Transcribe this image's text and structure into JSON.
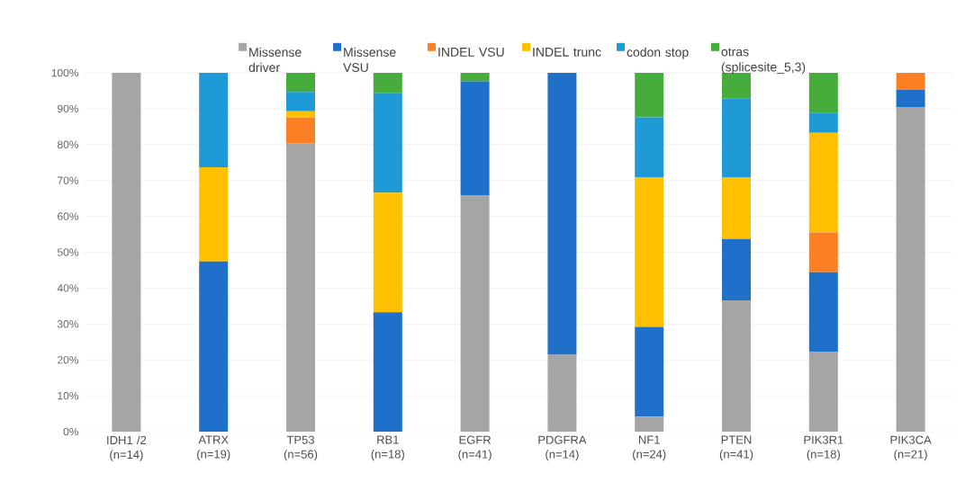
{
  "chart_data": {
    "type": "bar",
    "stacked": true,
    "legend": "top",
    "grid": "y",
    "categories": [
      "IDH1 /2 (n=14)",
      "ATRX (n=19)",
      "TP53 (n=56)",
      "RB1 (n=18)",
      "EGFR (n=41)",
      "PDGFRA (n=14)",
      "NF1 (n=24)",
      "PTEN (n=41)",
      "PIK3R1 (n=18)",
      "PIK3CA (n=21)"
    ],
    "ylim": [
      0,
      100
    ],
    "yticks": [
      {
        "value": 0,
        "label": "0%"
      },
      {
        "value": 10,
        "label": "10%"
      },
      {
        "value": 20,
        "label": "20%"
      },
      {
        "value": 30,
        "label": "30%"
      },
      {
        "value": 40,
        "label": "40%"
      },
      {
        "value": 50,
        "label": "50%"
      },
      {
        "value": 60,
        "label": "60%"
      },
      {
        "value": 70,
        "label": "70%"
      },
      {
        "value": 80,
        "label": "80%"
      },
      {
        "value": 90,
        "label": "90%"
      },
      {
        "value": 100,
        "label": "100%"
      }
    ],
    "series": [
      {
        "name": "Missense driver",
        "color": "#a5a5a5",
        "values": [
          100,
          0,
          80.4,
          0,
          65.9,
          21.4,
          4.2,
          36.6,
          22.2,
          90.5
        ]
      },
      {
        "name": "Missense VSU",
        "color": "#1f70c8",
        "values": [
          0,
          47.4,
          0,
          33.3,
          31.7,
          78.6,
          25.0,
          17.1,
          22.2,
          4.8
        ]
      },
      {
        "name": "INDEL VSU",
        "color": "#fd7f23",
        "values": [
          0,
          0,
          7.1,
          0,
          0,
          0,
          0,
          0,
          11.1,
          4.8
        ]
      },
      {
        "name": "INDEL trunc",
        "color": "#ffc000",
        "values": [
          0,
          26.3,
          1.8,
          33.3,
          0,
          0,
          41.7,
          17.1,
          27.8,
          0
        ]
      },
      {
        "name": "codon stop",
        "color": "#1e9bd7",
        "values": [
          0,
          26.3,
          5.4,
          27.8,
          0,
          0,
          16.7,
          22.0,
          5.6,
          0
        ]
      },
      {
        "name": "otras (splicesite_5,3)",
        "color": "#46ad3c",
        "values": [
          0,
          0,
          5.4,
          5.6,
          2.4,
          0,
          12.5,
          7.3,
          11.1,
          0
        ]
      }
    ]
  }
}
